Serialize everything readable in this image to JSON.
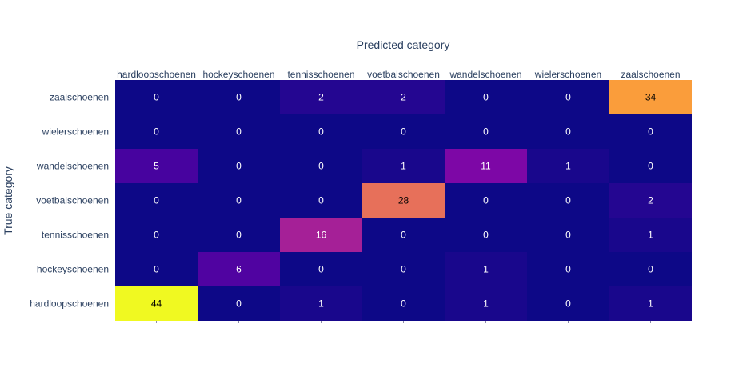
{
  "chart_data": {
    "type": "heatmap",
    "title": "",
    "xlabel": "Predicted category",
    "ylabel": "True category",
    "x_categories": [
      "hardloopschoenen",
      "hockeyschoenen",
      "tennisschoenen",
      "voetbalschoenen",
      "wandelschoenen",
      "wielerschoenen",
      "zaalschoenen"
    ],
    "y_categories": [
      "zaalschoenen",
      "wielerschoenen",
      "wandelschoenen",
      "voetbalschoenen",
      "tennisschoenen",
      "hockeyschoenen",
      "hardloopschoenen"
    ],
    "values": [
      [
        0,
        0,
        2,
        2,
        0,
        0,
        34
      ],
      [
        0,
        0,
        0,
        0,
        0,
        0,
        0
      ],
      [
        5,
        0,
        0,
        1,
        11,
        1,
        0
      ],
      [
        0,
        0,
        0,
        28,
        0,
        0,
        2
      ],
      [
        0,
        0,
        16,
        0,
        0,
        0,
        1
      ],
      [
        0,
        6,
        0,
        0,
        1,
        0,
        0
      ],
      [
        44,
        0,
        1,
        0,
        1,
        0,
        1
      ]
    ],
    "zlim": [
      0,
      44
    ],
    "colorscale": [
      "#0d0887",
      "#46039f",
      "#7201a8",
      "#9c179e",
      "#bd3786",
      "#d8576b",
      "#ed7953",
      "#fb9f3a",
      "#fdca26",
      "#f0f921"
    ],
    "x_axis_position": "top",
    "grid": false,
    "legend": "none",
    "text_color_dark": "#000000",
    "text_color_light": "#ffffff",
    "axis_text_color": "#2a3f5f"
  }
}
